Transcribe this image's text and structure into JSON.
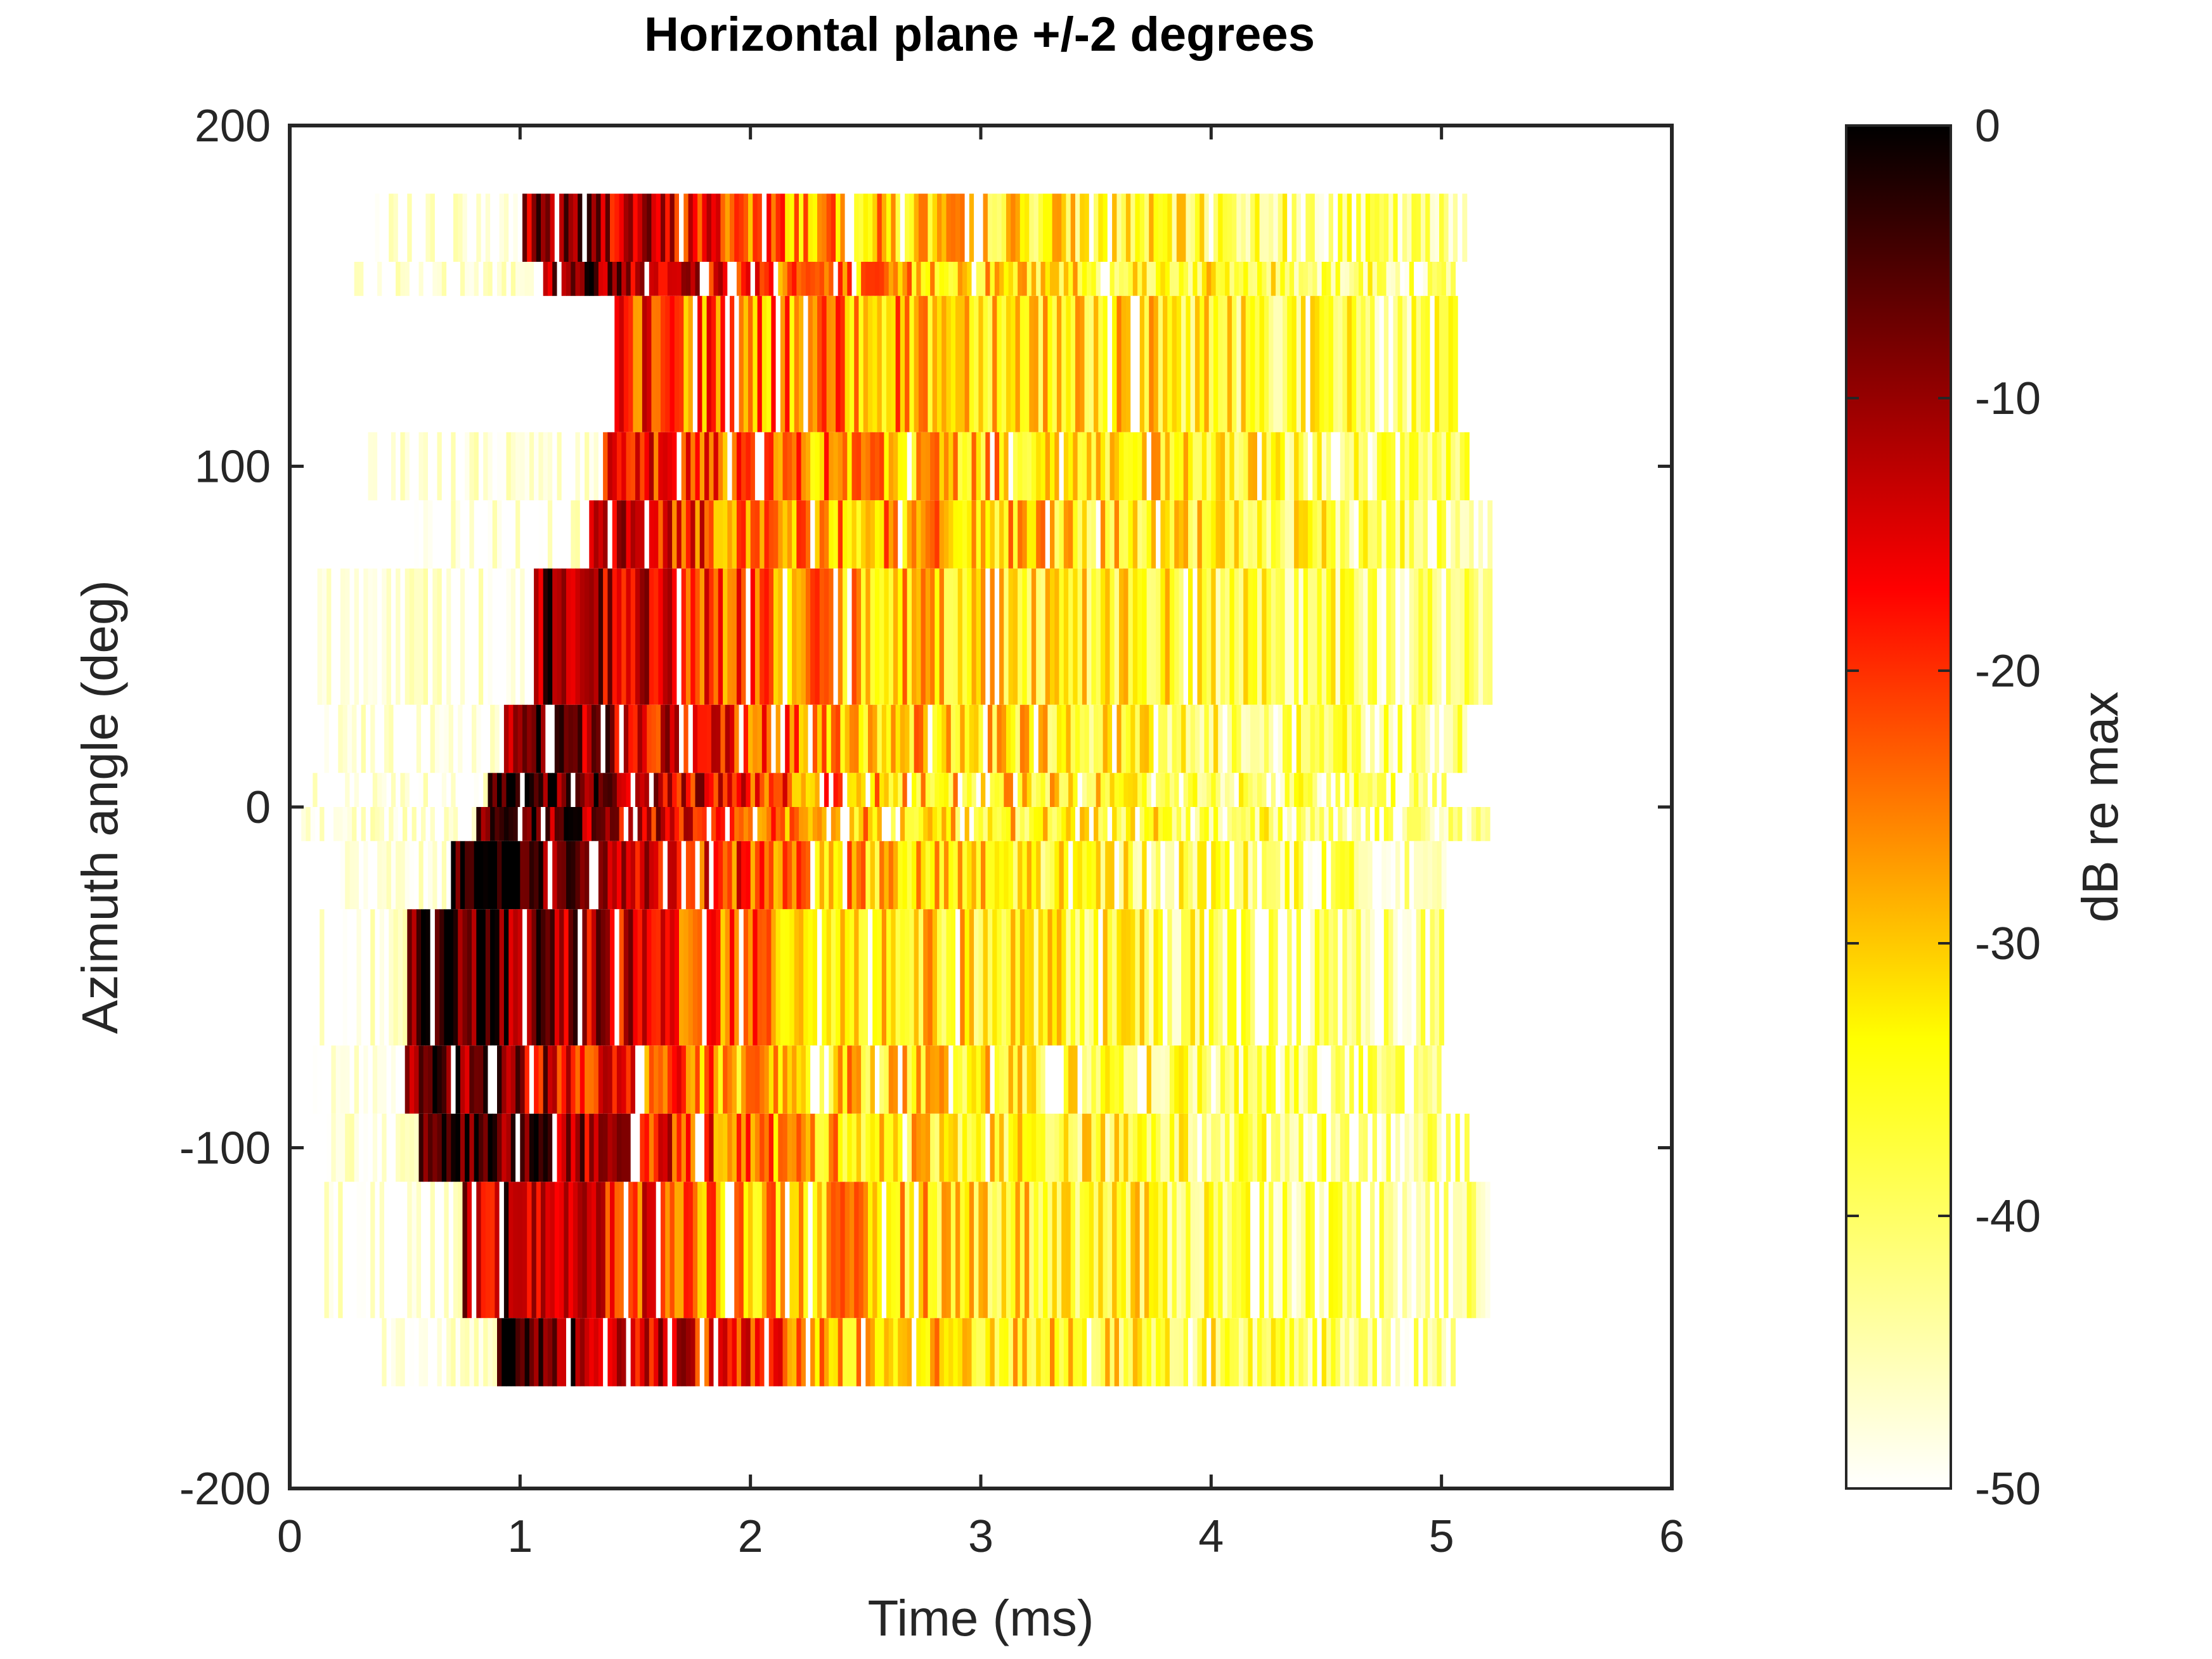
{
  "chart_data": {
    "type": "heatmap",
    "title": "Horizontal plane +/-2 degrees",
    "xlabel": "Time (ms)",
    "ylabel": "Azimuth angle (deg)",
    "xlim": [
      0,
      6
    ],
    "ylim": [
      -200,
      200
    ],
    "x_ticks": [
      "0",
      "1",
      "2",
      "3",
      "4",
      "5",
      "6"
    ],
    "y_ticks": [
      "200",
      "100",
      "0",
      "-100",
      "-200"
    ],
    "colormap": "hot (reversed)",
    "colorbar": {
      "label": "dB re max",
      "range": [
        -50,
        0
      ],
      "ticks": [
        "0",
        "-10",
        "-20",
        "-30",
        "-40",
        "-50"
      ]
    },
    "grid": false,
    "rows": [
      {
        "az_min": 160,
        "az_max": 180,
        "t_start": 0.35,
        "t_end": 5.1,
        "onset_t": 1.0,
        "decay_db_per_ms": 6.5,
        "peak_db": -8,
        "peak_t": 1.2
      },
      {
        "az_min": 150,
        "az_max": 160,
        "t_start": 0.2,
        "t_end": 5.05,
        "onset_t": 1.1,
        "decay_db_per_ms": 6.0,
        "peak_db": -6,
        "peak_t": 1.3
      },
      {
        "az_min": 110,
        "az_max": 150,
        "t_start": 1.35,
        "t_end": 5.05,
        "onset_t": 1.4,
        "decay_db_per_ms": 6.0,
        "peak_db": -20,
        "peak_t": 1.5
      },
      {
        "az_min": 90,
        "az_max": 110,
        "t_start": 0.3,
        "t_end": 5.1,
        "onset_t": 1.35,
        "decay_db_per_ms": 6.0,
        "peak_db": -15,
        "peak_t": 1.45
      },
      {
        "az_min": 70,
        "az_max": 90,
        "t_start": 0.5,
        "t_end": 5.2,
        "onset_t": 1.3,
        "decay_db_per_ms": 6.0,
        "peak_db": -14,
        "peak_t": 1.4
      },
      {
        "az_min": 30,
        "az_max": 70,
        "t_start": 0.1,
        "t_end": 5.2,
        "onset_t": 1.05,
        "decay_db_per_ms": 6.0,
        "peak_db": -8,
        "peak_t": 1.15
      },
      {
        "az_min": 10,
        "az_max": 30,
        "t_start": 0.15,
        "t_end": 5.1,
        "onset_t": 0.9,
        "decay_db_per_ms": 6.0,
        "peak_db": -5,
        "peak_t": 1.05
      },
      {
        "az_min": 0,
        "az_max": 10,
        "t_start": 0.1,
        "t_end": 5.0,
        "onset_t": 0.85,
        "decay_db_per_ms": 6.0,
        "peak_db": -2,
        "peak_t": 1.0
      },
      {
        "az_min": -10,
        "az_max": 0,
        "t_start": 0.05,
        "t_end": 5.2,
        "onset_t": 0.8,
        "decay_db_per_ms": 6.0,
        "peak_db": -3,
        "peak_t": 0.95
      },
      {
        "az_min": -30,
        "az_max": -10,
        "t_start": 0.2,
        "t_end": 5.0,
        "onset_t": 0.7,
        "decay_db_per_ms": 6.0,
        "peak_db": -1,
        "peak_t": 0.85
      },
      {
        "az_min": -70,
        "az_max": -30,
        "t_start": 0.05,
        "t_end": 5.0,
        "onset_t": 0.5,
        "decay_db_per_ms": 6.0,
        "peak_db": -2,
        "peak_t": 0.7
      },
      {
        "az_min": -90,
        "az_max": -70,
        "t_start": 0.08,
        "t_end": 5.0,
        "onset_t": 0.5,
        "decay_db_per_ms": 6.0,
        "peak_db": -6,
        "peak_t": 0.7
      },
      {
        "az_min": -110,
        "az_max": -90,
        "t_start": 0.08,
        "t_end": 5.1,
        "onset_t": 0.55,
        "decay_db_per_ms": 6.0,
        "peak_db": -2,
        "peak_t": 0.75
      },
      {
        "az_min": -150,
        "az_max": -110,
        "t_start": 0.15,
        "t_end": 5.2,
        "onset_t": 0.75,
        "decay_db_per_ms": 6.0,
        "peak_db": -10,
        "peak_t": 0.95
      },
      {
        "az_min": -170,
        "az_max": -150,
        "t_start": 0.4,
        "t_end": 5.05,
        "onset_t": 0.9,
        "decay_db_per_ms": 6.0,
        "peak_db": -4,
        "peak_t": 1.05
      }
    ]
  }
}
